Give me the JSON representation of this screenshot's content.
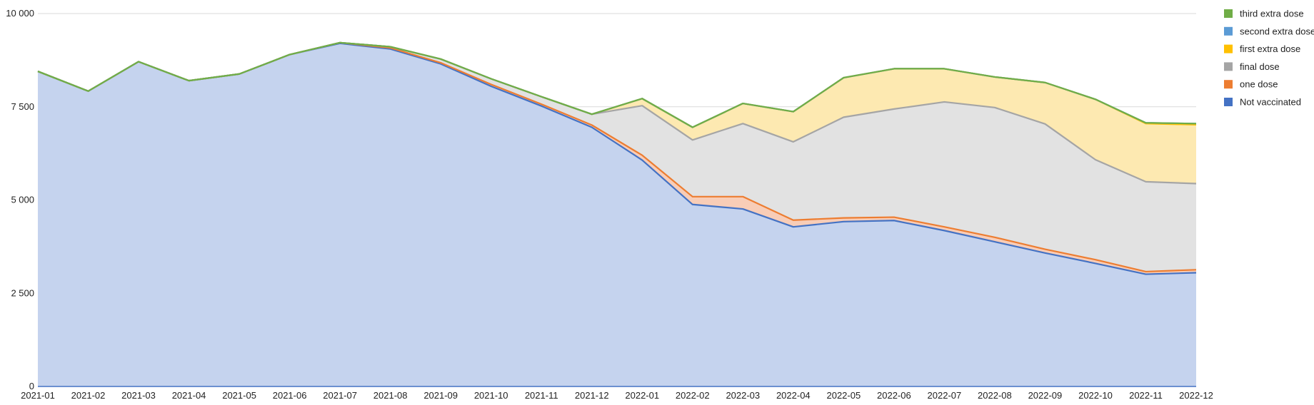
{
  "chart_data": {
    "type": "area",
    "stacked": true,
    "title": "",
    "xlabel": "",
    "ylabel": "",
    "ylim": [
      0,
      10000
    ],
    "yticks": [
      0,
      2500,
      5000,
      7500,
      10000
    ],
    "ytick_labels": [
      "0",
      "2 500",
      "5 000",
      "7 500",
      "10 000"
    ],
    "grid": true,
    "legend_position": "right",
    "x": [
      "2021-01",
      "2021-02",
      "2021-03",
      "2021-04",
      "2021-05",
      "2021-06",
      "2021-07",
      "2021-08",
      "2021-09",
      "2021-10",
      "2021-11",
      "2021-12",
      "2022-01",
      "2022-02",
      "2022-03",
      "2022-04",
      "2022-05",
      "2022-06",
      "2022-07",
      "2022-08",
      "2022-09",
      "2022-10",
      "2022-11",
      "2022-12"
    ],
    "series": [
      {
        "name": "Not vaccinated",
        "color": "#4472c4",
        "fill": "#c5d3ee",
        "values": [
          8450,
          7920,
          8710,
          8200,
          8380,
          8900,
          9200,
          9050,
          8650,
          8050,
          7520,
          6950,
          6070,
          4880,
          4760,
          4280,
          4420,
          4450,
          4180,
          3880,
          3580,
          3300,
          3010,
          3050
        ]
      },
      {
        "name": "one dose",
        "color": "#ed7d31",
        "fill": "#f8cdb7",
        "values": [
          0,
          0,
          0,
          0,
          0,
          0,
          20,
          30,
          30,
          50,
          50,
          60,
          130,
          210,
          330,
          180,
          100,
          90,
          100,
          120,
          100,
          100,
          70,
          80
        ]
      },
      {
        "name": "final dose",
        "color": "#a5a5a5",
        "fill": "#e2e2e2",
        "values": [
          0,
          0,
          0,
          0,
          0,
          0,
          0,
          30,
          100,
          150,
          200,
          290,
          1330,
          1520,
          1960,
          2100,
          2700,
          2900,
          3350,
          3480,
          3360,
          2680,
          2410,
          2310
        ]
      },
      {
        "name": "first extra dose",
        "color": "#ffc000",
        "fill": "#fde9b1",
        "values": [
          0,
          0,
          0,
          0,
          0,
          0,
          0,
          0,
          0,
          0,
          0,
          0,
          190,
          340,
          540,
          810,
          1060,
          1080,
          890,
          820,
          1110,
          1620,
          1560,
          1580
        ]
      },
      {
        "name": "second extra dose",
        "color": "#5b9bd5",
        "fill": "#d3e2f2",
        "values": [
          0,
          0,
          0,
          0,
          0,
          0,
          0,
          0,
          0,
          0,
          0,
          0,
          0,
          0,
          0,
          0,
          0,
          0,
          0,
          0,
          0,
          0,
          20,
          30
        ]
      },
      {
        "name": "third extra dose",
        "color": "#70ad47",
        "fill": "#d4e8c6",
        "values": [
          0,
          0,
          0,
          0,
          0,
          0,
          0,
          0,
          0,
          0,
          0,
          0,
          0,
          0,
          0,
          0,
          0,
          0,
          0,
          0,
          0,
          0,
          0,
          0
        ]
      }
    ],
    "legend_order": [
      "third extra dose",
      "second extra dose",
      "first extra dose",
      "final dose",
      "one dose",
      "Not vaccinated"
    ]
  }
}
